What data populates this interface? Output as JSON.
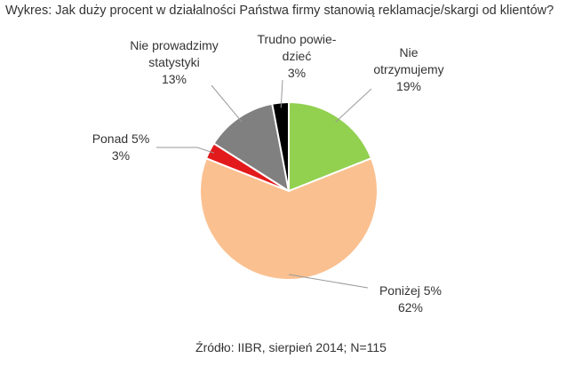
{
  "chart_data": {
    "type": "pie",
    "title": "Wykres: Jak duży procent w działalności Państwa firmy stanowią reklamacje/skargi od klientów?",
    "source": "Źródło: IIBR, sierpień 2014; N=115",
    "slices": [
      {
        "label_lines": [
          "Nie",
          "otrzymujemy"
        ],
        "value_label": "19%",
        "value": 19,
        "color": "#92d050"
      },
      {
        "label_lines": [
          "Poniżej 5%"
        ],
        "value_label": "62%",
        "value": 62,
        "color": "#fac090"
      },
      {
        "label_lines": [
          "Ponad 5%"
        ],
        "value_label": "3%",
        "value": 3,
        "color": "#e31a1c"
      },
      {
        "label_lines": [
          "Nie prowadzimy",
          "statystyki"
        ],
        "value_label": "13%",
        "value": 13,
        "color": "#808080"
      },
      {
        "label_lines": [
          "Trudno powie-",
          "dzieć"
        ],
        "value_label": "3%",
        "value": 3,
        "color": "#000000"
      }
    ]
  }
}
